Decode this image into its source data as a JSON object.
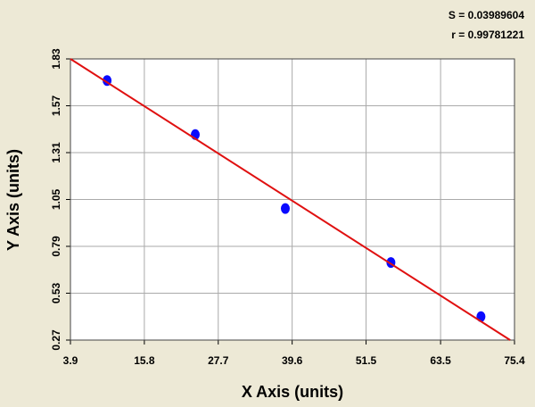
{
  "chart_data": {
    "type": "scatter",
    "xlabel": "X Axis (units)",
    "ylabel": "Y Axis (units)",
    "annotations": [
      "S = 0.03989604",
      "r = 0.99781221"
    ],
    "xlim": [
      3.9,
      75.4
    ],
    "xticks": [
      3.9,
      15.8,
      27.7,
      39.6,
      51.5,
      63.5,
      75.4
    ],
    "ylim": [
      0.27,
      1.83
    ],
    "yticks": [
      0.27,
      0.53,
      0.79,
      1.05,
      1.31,
      1.57,
      1.83
    ],
    "grid": true,
    "series": [
      {
        "x": [
          9.8,
          24.0,
          38.5,
          55.5,
          70.0
        ],
        "values": [
          1.71,
          1.41,
          1.0,
          0.7,
          0.4
        ],
        "color": "#0a0aff",
        "line": false
      },
      {
        "x": [
          3.9,
          74.7
        ],
        "values": [
          1.83,
          0.27
        ],
        "color": "#e01010",
        "line": true
      }
    ]
  }
}
